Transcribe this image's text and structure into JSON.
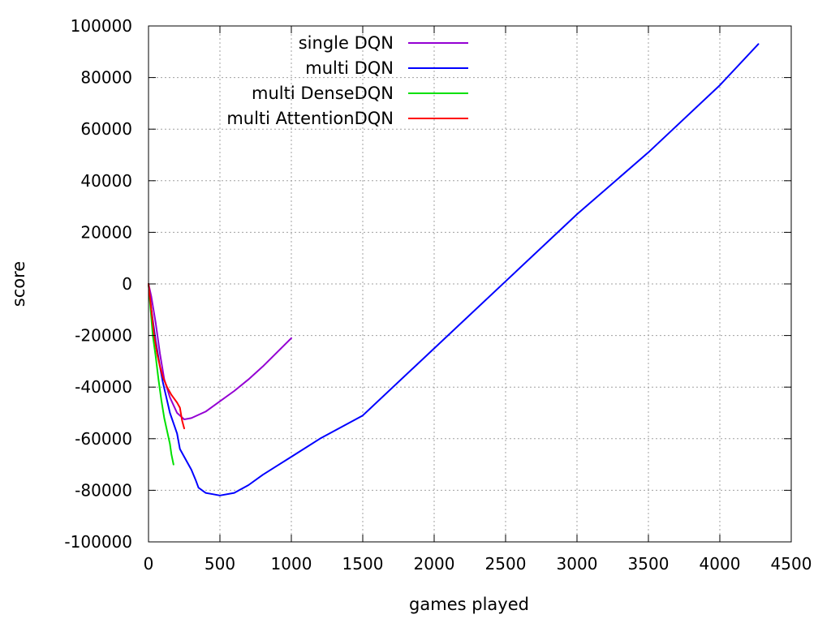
{
  "chart_data": {
    "type": "line",
    "title": "",
    "xlabel": "games played",
    "ylabel": "score",
    "xlim": [
      0,
      4500
    ],
    "ylim": [
      -100000,
      100000
    ],
    "grid": true,
    "legend_position": "top-center",
    "x_ticks": [
      0,
      500,
      1000,
      1500,
      2000,
      2500,
      3000,
      3500,
      4000,
      4500
    ],
    "y_ticks": [
      -100000,
      -80000,
      -60000,
      -40000,
      -20000,
      0,
      20000,
      40000,
      60000,
      80000,
      100000
    ],
    "series": [
      {
        "name": "single DQN",
        "color": "#9400d3",
        "points": [
          [
            0,
            0
          ],
          [
            20,
            -5000
          ],
          [
            50,
            -15000
          ],
          [
            80,
            -27000
          ],
          [
            110,
            -37000
          ],
          [
            150,
            -44000
          ],
          [
            200,
            -50000
          ],
          [
            250,
            -52500
          ],
          [
            300,
            -52000
          ],
          [
            400,
            -49500
          ],
          [
            500,
            -45500
          ],
          [
            600,
            -41500
          ],
          [
            700,
            -37000
          ],
          [
            800,
            -32000
          ],
          [
            900,
            -26500
          ],
          [
            1000,
            -21000
          ]
        ]
      },
      {
        "name": "multi DQN",
        "color": "#0000ff",
        "points": [
          [
            0,
            0
          ],
          [
            20,
            -10000
          ],
          [
            50,
            -22000
          ],
          [
            80,
            -32000
          ],
          [
            100,
            -38000
          ],
          [
            150,
            -50000
          ],
          [
            200,
            -58000
          ],
          [
            220,
            -64000
          ],
          [
            250,
            -67000
          ],
          [
            300,
            -72000
          ],
          [
            330,
            -76000
          ],
          [
            350,
            -79000
          ],
          [
            400,
            -81000
          ],
          [
            450,
            -81500
          ],
          [
            500,
            -82000
          ],
          [
            600,
            -81000
          ],
          [
            700,
            -78000
          ],
          [
            800,
            -74000
          ],
          [
            900,
            -70500
          ],
          [
            1000,
            -67000
          ],
          [
            1200,
            -60000
          ],
          [
            1500,
            -51000
          ],
          [
            2000,
            -25000
          ],
          [
            2500,
            1000
          ],
          [
            3000,
            27000
          ],
          [
            3500,
            51000
          ],
          [
            4000,
            77000
          ],
          [
            4270,
            93000
          ]
        ]
      },
      {
        "name": "multi DenseDQN",
        "color": "#00e000",
        "points": [
          [
            0,
            0
          ],
          [
            15,
            -10000
          ],
          [
            30,
            -20000
          ],
          [
            50,
            -28000
          ],
          [
            70,
            -37000
          ],
          [
            90,
            -45000
          ],
          [
            110,
            -52000
          ],
          [
            130,
            -57000
          ],
          [
            150,
            -62000
          ],
          [
            160,
            -66000
          ],
          [
            175,
            -70000
          ]
        ]
      },
      {
        "name": "multi AttentionDQN",
        "color": "#ff0000",
        "points": [
          [
            0,
            0
          ],
          [
            20,
            -10000
          ],
          [
            40,
            -20000
          ],
          [
            60,
            -27000
          ],
          [
            80,
            -32000
          ],
          [
            100,
            -36000
          ],
          [
            130,
            -40000
          ],
          [
            160,
            -43000
          ],
          [
            200,
            -46000
          ],
          [
            220,
            -48000
          ],
          [
            235,
            -53000
          ],
          [
            250,
            -56000
          ]
        ]
      }
    ]
  }
}
